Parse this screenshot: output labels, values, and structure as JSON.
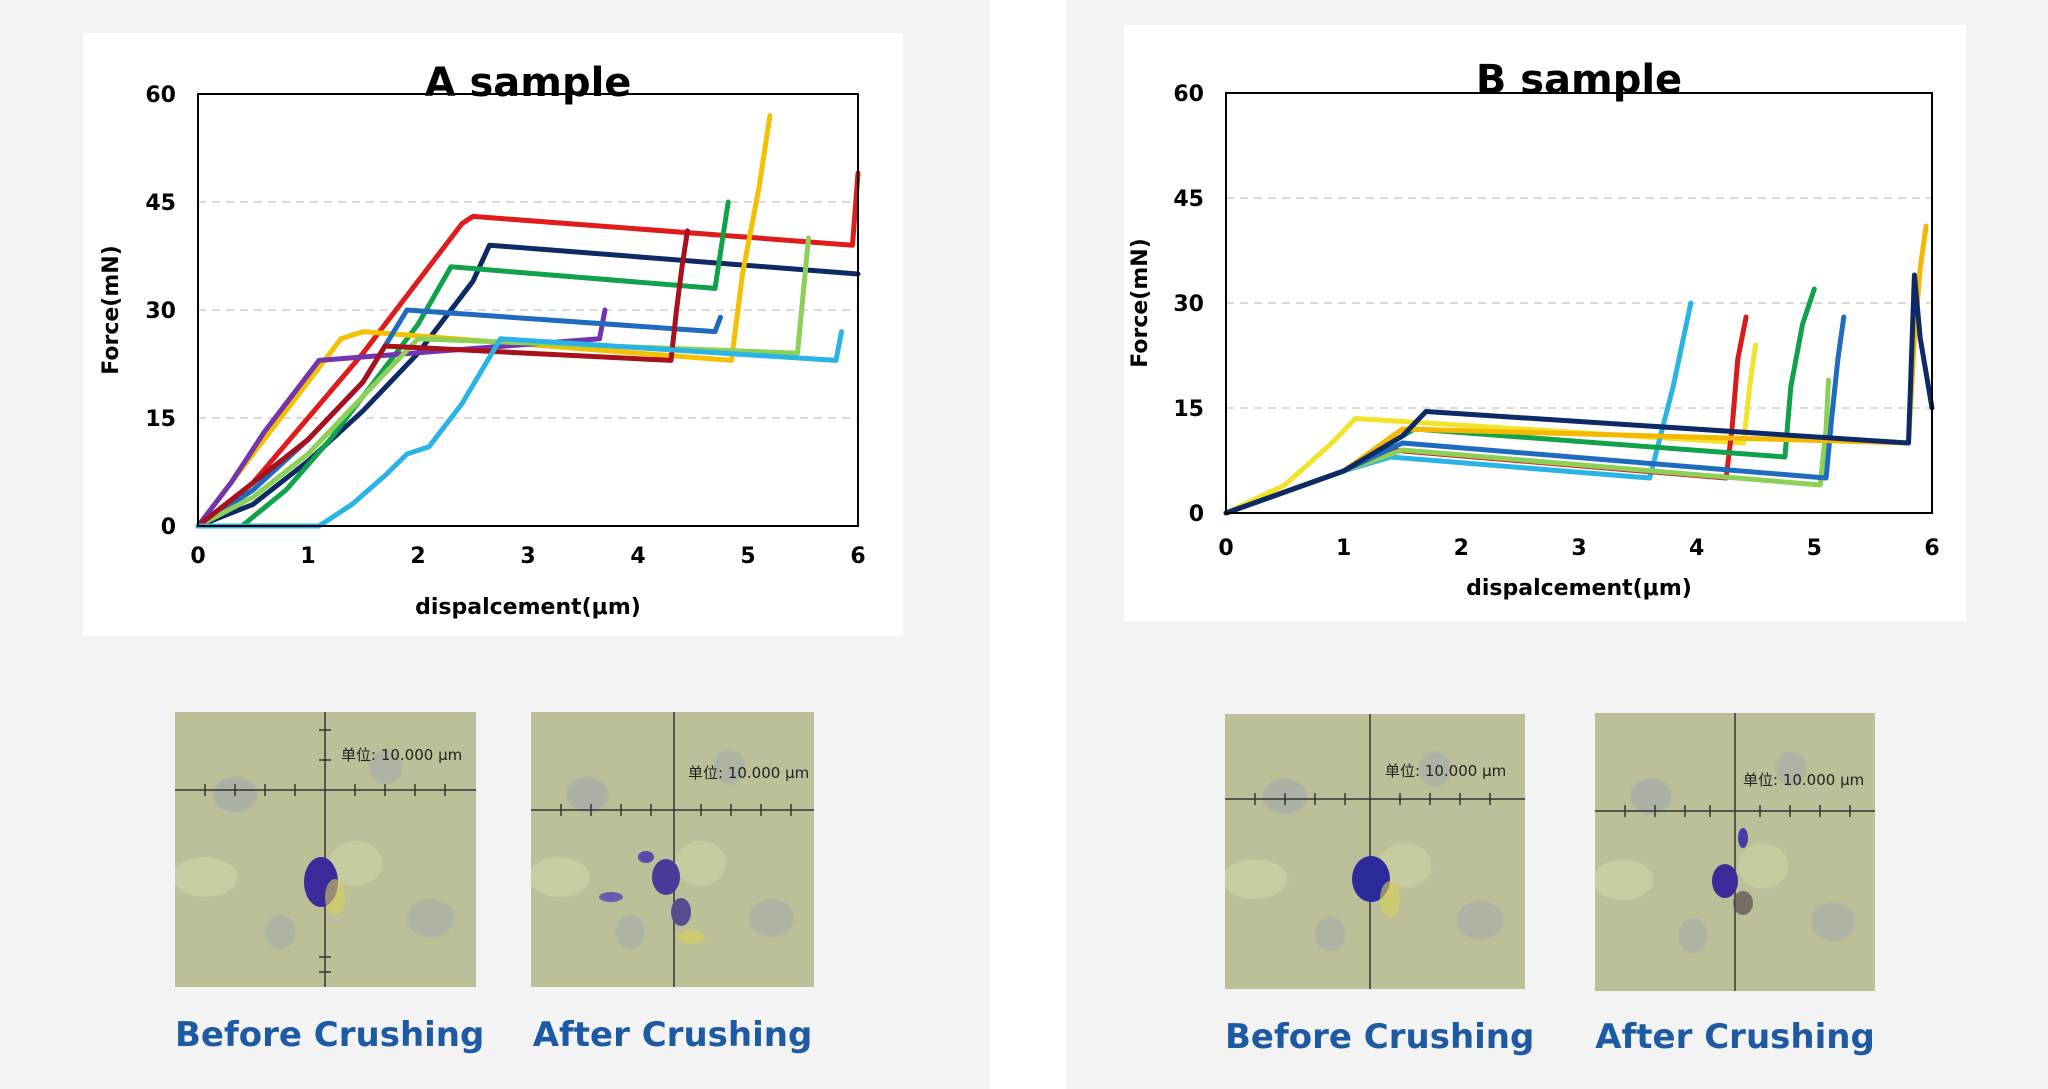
{
  "chart_data": [
    {
      "type": "line",
      "title": "A sample",
      "xlabel": "dispalcement(μm)",
      "ylabel": "Force(mN)",
      "xlim": [
        0,
        6
      ],
      "ylim": [
        0,
        60
      ],
      "xticks": [
        0,
        1,
        2,
        3,
        4,
        5,
        6
      ],
      "yticks": [
        0,
        15,
        30,
        45,
        60
      ],
      "grid": "horizontal dashed",
      "series": [
        {
          "name": "red",
          "color": "#e01b1b",
          "x": [
            0,
            0.5,
            1.0,
            1.5,
            2.0,
            2.4,
            2.5,
            5.95,
            6.0
          ],
          "y": [
            0,
            6,
            15,
            24,
            34,
            42,
            43,
            39,
            49
          ]
        },
        {
          "name": "navy",
          "color": "#0d2a66",
          "x": [
            0,
            0.5,
            1.0,
            1.5,
            2.0,
            2.5,
            2.65,
            6.0
          ],
          "y": [
            0,
            3,
            9,
            16,
            24,
            34,
            39,
            35
          ]
        },
        {
          "name": "green",
          "color": "#10a14b",
          "x": [
            0,
            0.4,
            0.8,
            1.2,
            1.6,
            2.0,
            2.3,
            4.7,
            4.75,
            4.82
          ],
          "y": [
            0,
            0,
            5,
            12,
            20,
            28,
            36,
            33,
            38,
            45
          ]
        },
        {
          "name": "yellow",
          "color": "#f5c000",
          "x": [
            0,
            0.5,
            1.0,
            1.3,
            1.5,
            4.85,
            4.95,
            5.1,
            5.2
          ],
          "y": [
            0,
            10,
            20,
            26,
            27,
            23,
            35,
            47,
            57
          ]
        },
        {
          "name": "purple",
          "color": "#7434b0",
          "x": [
            0,
            0.3,
            0.6,
            0.9,
            1.1,
            3.65,
            3.7
          ],
          "y": [
            0,
            6,
            13,
            19,
            23,
            26,
            30
          ]
        },
        {
          "name": "blue",
          "color": "#1e6bc0",
          "x": [
            0,
            0.5,
            1.0,
            1.5,
            1.9,
            4.7,
            4.75
          ],
          "y": [
            0,
            5,
            12,
            20,
            30,
            27,
            29
          ]
        },
        {
          "name": "light-green",
          "color": "#8cd057",
          "x": [
            0,
            0.5,
            1.0,
            1.5,
            2.0,
            5.45,
            5.5,
            5.55
          ],
          "y": [
            0,
            4,
            10,
            18,
            26,
            24,
            32,
            40
          ]
        },
        {
          "name": "dark-red",
          "color": "#a8101c",
          "x": [
            0,
            0.5,
            1.0,
            1.5,
            1.7,
            4.3,
            4.35,
            4.4,
            4.45
          ],
          "y": [
            0,
            6,
            12,
            20,
            25,
            23,
            30,
            36,
            41
          ]
        },
        {
          "name": "cyan",
          "color": "#2ab4e6",
          "x": [
            0,
            1.1,
            1.4,
            1.7,
            1.9,
            2.1,
            2.4,
            2.75,
            5.8,
            5.85
          ],
          "y": [
            0,
            0,
            3,
            7,
            10,
            11,
            17,
            26,
            23,
            27
          ]
        }
      ]
    },
    {
      "type": "line",
      "title": "B sample",
      "xlabel": "dispalcement(μm)",
      "ylabel": "Force(mN)",
      "xlim": [
        0,
        6
      ],
      "ylim": [
        0,
        60
      ],
      "xticks": [
        0,
        1,
        2,
        3,
        4,
        5,
        6
      ],
      "yticks": [
        0,
        15,
        30,
        45,
        60
      ],
      "grid": "horizontal dashed",
      "series": [
        {
          "name": "yellow",
          "color": "#f2e32a",
          "x": [
            0,
            0.5,
            0.9,
            1.1,
            4.4,
            4.45,
            4.5
          ],
          "y": [
            0,
            4,
            10,
            13.5,
            10,
            18,
            24
          ]
        },
        {
          "name": "cyan",
          "color": "#2ab4e6",
          "x": [
            0,
            0.5,
            1.0,
            1.4,
            3.6,
            3.8,
            3.95
          ],
          "y": [
            0,
            3,
            6,
            8,
            5,
            18,
            30
          ]
        },
        {
          "name": "red",
          "color": "#d81b1b",
          "x": [
            0,
            0.5,
            1.0,
            1.4,
            4.25,
            4.3,
            4.35,
            4.42
          ],
          "y": [
            0,
            3,
            6,
            9,
            5,
            12,
            22,
            28
          ]
        },
        {
          "name": "green",
          "color": "#10a14b",
          "x": [
            0,
            0.5,
            1.0,
            1.6,
            4.75,
            4.8,
            4.9,
            5.0
          ],
          "y": [
            0,
            3,
            6,
            12,
            8,
            18,
            27,
            32
          ]
        },
        {
          "name": "light-green",
          "color": "#8cd057",
          "x": [
            0,
            0.5,
            1.0,
            1.5,
            5.05,
            5.1,
            5.12
          ],
          "y": [
            0,
            3,
            6,
            9,
            4,
            12,
            19
          ]
        },
        {
          "name": "blue",
          "color": "#1e6bc0",
          "x": [
            0,
            0.5,
            1.0,
            1.5,
            5.1,
            5.15,
            5.2,
            5.25
          ],
          "y": [
            0,
            3,
            6,
            10,
            5,
            14,
            22,
            28
          ]
        },
        {
          "name": "orange-yellow",
          "color": "#f5b800",
          "x": [
            0,
            0.5,
            1.0,
            1.5,
            5.8,
            5.85,
            5.9,
            5.95
          ],
          "y": [
            0,
            3,
            6,
            12,
            10,
            25,
            35,
            41
          ]
        },
        {
          "name": "navy",
          "color": "#0d2a66",
          "x": [
            0,
            0.5,
            1.0,
            1.5,
            1.7,
            5.8,
            5.85,
            5.9,
            6.0
          ],
          "y": [
            0,
            3,
            6,
            11,
            14.5,
            10,
            34,
            25,
            15
          ]
        }
      ]
    }
  ],
  "images": {
    "a_before": {
      "scale": "单位: 10.000 μm",
      "caption": "Before Crushing"
    },
    "a_after": {
      "scale": "单位: 10.000 μm",
      "caption": "After Crushing"
    },
    "b_before": {
      "scale": "单位: 10.000 μm",
      "caption": "Before Crushing"
    },
    "b_after": {
      "scale": "单位: 10.000 μm",
      "caption": "After Crushing"
    }
  }
}
